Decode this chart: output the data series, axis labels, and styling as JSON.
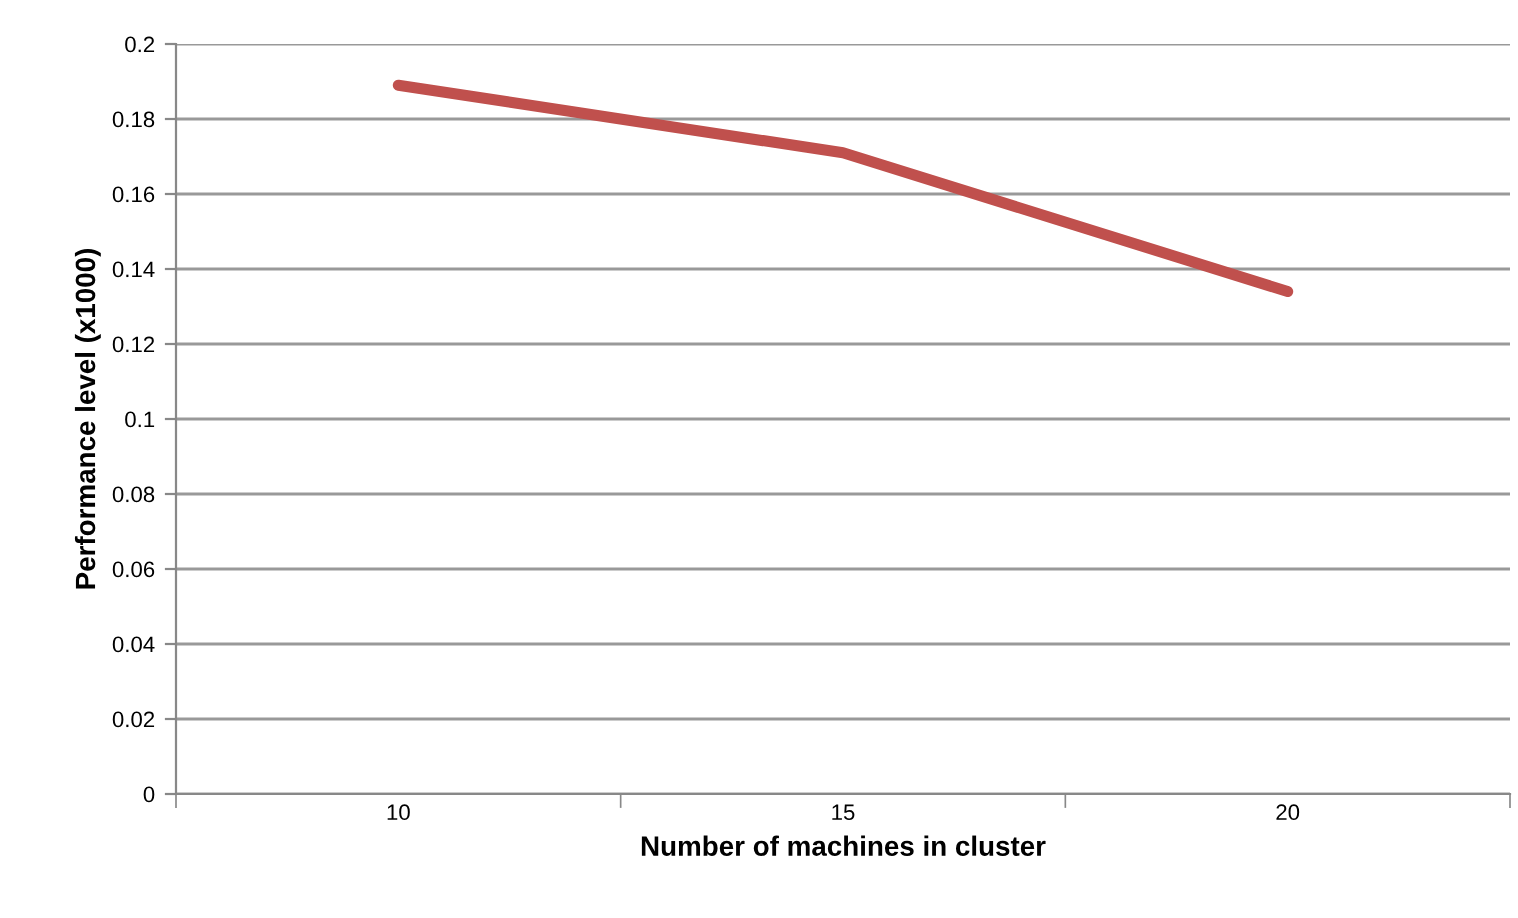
{
  "chart_data": {
    "type": "line",
    "xlabel": "Number of machines in cluster",
    "ylabel": "Performance level (x1000)",
    "categories": [
      "10",
      "15",
      "20"
    ],
    "series": [
      {
        "color": "#c0504d",
        "values": [
          0.189,
          0.171,
          0.134
        ]
      }
    ],
    "ylim": [
      0,
      0.2
    ],
    "yticks": [
      0,
      0.02,
      0.04,
      0.06,
      0.08,
      0.1,
      0.12,
      0.14,
      0.16,
      0.18,
      0.2
    ],
    "grid": "y",
    "marker": "none",
    "line_style": "solid",
    "legend": false
  }
}
